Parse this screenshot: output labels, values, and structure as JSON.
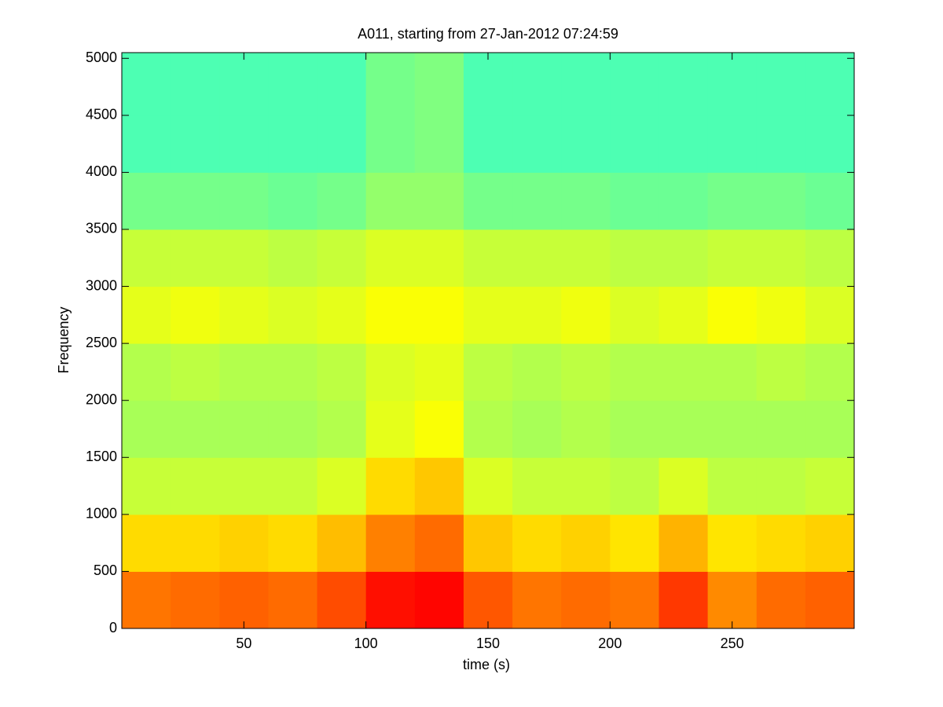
{
  "chart_data": {
    "type": "spectrogram",
    "title": "A011, starting from 27-Jan-2012 07:24:59",
    "x_label": "time (s)",
    "y_label": "Frequency",
    "xlim": [
      0,
      300
    ],
    "ylim": [
      0,
      5050
    ],
    "xticks": [
      50,
      100,
      150,
      200,
      250
    ],
    "yticks": [
      0,
      500,
      1000,
      1500,
      2000,
      2500,
      3000,
      3500,
      4000,
      4500,
      5000
    ],
    "colormap": "jet",
    "clim": [
      0,
      1
    ],
    "xbins": [
      0,
      20,
      40,
      60,
      80,
      100,
      120,
      140,
      160,
      180,
      200,
      220,
      240,
      260,
      280,
      300
    ],
    "ybins": [
      0,
      500,
      1000,
      1500,
      2000,
      2500,
      3000,
      3500,
      4000,
      4500,
      5050
    ],
    "values": [
      [
        0.76,
        0.77,
        0.78,
        0.77,
        0.8,
        0.86,
        0.87,
        0.79,
        0.76,
        0.77,
        0.76,
        0.82,
        0.74,
        0.77,
        0.78
      ],
      [
        0.66,
        0.66,
        0.67,
        0.66,
        0.69,
        0.75,
        0.77,
        0.68,
        0.66,
        0.67,
        0.65,
        0.7,
        0.65,
        0.66,
        0.67
      ],
      [
        0.57,
        0.57,
        0.57,
        0.57,
        0.59,
        0.66,
        0.68,
        0.59,
        0.57,
        0.57,
        0.56,
        0.59,
        0.56,
        0.56,
        0.57
      ],
      [
        0.54,
        0.54,
        0.54,
        0.54,
        0.55,
        0.6,
        0.62,
        0.55,
        0.54,
        0.55,
        0.54,
        0.54,
        0.54,
        0.54,
        0.54
      ],
      [
        0.55,
        0.56,
        0.55,
        0.55,
        0.56,
        0.59,
        0.6,
        0.56,
        0.55,
        0.56,
        0.55,
        0.55,
        0.55,
        0.56,
        0.55
      ],
      [
        0.6,
        0.61,
        0.6,
        0.59,
        0.6,
        0.62,
        0.62,
        0.6,
        0.6,
        0.61,
        0.59,
        0.6,
        0.62,
        0.61,
        0.59
      ],
      [
        0.57,
        0.57,
        0.57,
        0.56,
        0.57,
        0.59,
        0.59,
        0.57,
        0.57,
        0.57,
        0.56,
        0.56,
        0.57,
        0.57,
        0.56
      ],
      [
        0.49,
        0.49,
        0.49,
        0.48,
        0.49,
        0.52,
        0.52,
        0.49,
        0.49,
        0.49,
        0.48,
        0.48,
        0.49,
        0.49,
        0.48
      ],
      [
        0.45,
        0.45,
        0.45,
        0.45,
        0.45,
        0.49,
        0.5,
        0.45,
        0.45,
        0.45,
        0.45,
        0.45,
        0.45,
        0.45,
        0.45
      ],
      [
        0.45,
        0.45,
        0.45,
        0.45,
        0.45,
        0.49,
        0.5,
        0.45,
        0.45,
        0.45,
        0.45,
        0.45,
        0.45,
        0.45,
        0.45
      ]
    ]
  }
}
